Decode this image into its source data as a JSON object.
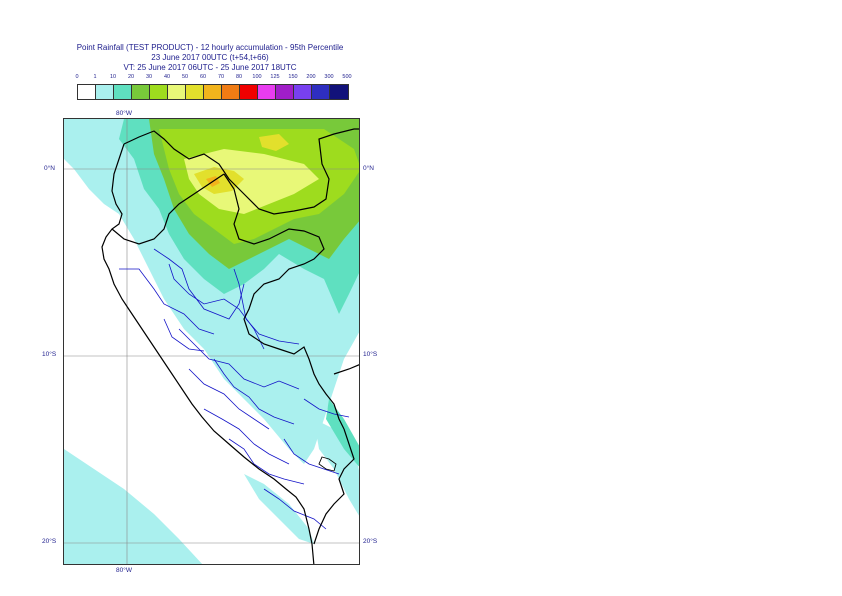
{
  "title": {
    "line1": "Point Rainfall (TEST PRODUCT) - 12 hourly accumulation - 95th Percentile",
    "line2": "23 June 2017 00UTC (t+54,t+66)",
    "line3": "VT: 25 June 2017 06UTC - 25 June 2017 18UTC"
  },
  "legend": {
    "labels": [
      "0",
      "1",
      "10",
      "20",
      "30",
      "40",
      "50",
      "60",
      "70",
      "80",
      "100",
      "125",
      "150",
      "200",
      "300",
      "500"
    ],
    "colors": [
      "#ffffff",
      "#aaf0ee",
      "#5fe0c0",
      "#78c93a",
      "#9edc1e",
      "#e8f878",
      "#e2e02c",
      "#f2b41c",
      "#f07c14",
      "#f00000",
      "#e83cf0",
      "#a01ec8",
      "#7840f0",
      "#2e2ec0",
      "#12127a"
    ]
  },
  "axes": {
    "top_lon": "80°W",
    "bottom_lon": "80°W",
    "lat_0": "0°N",
    "lat_10": "10°S",
    "lat_20": "20°S"
  },
  "colors": {
    "frame": "#333333",
    "coast": "#000000",
    "admin": "#1414c8",
    "grid": "#888888",
    "label": "#1c1c8c"
  }
}
